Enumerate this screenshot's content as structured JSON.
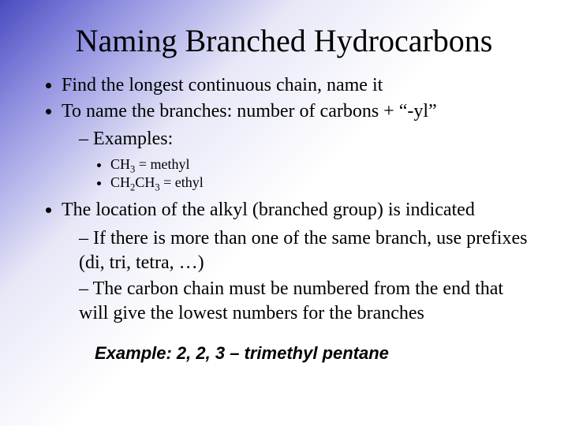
{
  "colors": {
    "gradient_start": "#4a4ac0",
    "gradient_mid": "#e8e8f8",
    "gradient_end": "#ffffff",
    "text": "#000000"
  },
  "typography": {
    "title_fontsize": 40,
    "body_fontsize": 24,
    "sub_fontsize": 18,
    "final_fontsize": 22,
    "body_family": "Times New Roman",
    "final_family": "Arial"
  },
  "title": "Naming Branched Hydrocarbons",
  "bullets": {
    "b1": "Find the longest continuous chain, name it",
    "b2": "To name the branches:  number of carbons + “-yl”",
    "b2_sub1": "Examples:",
    "b2_ex1_pre": "CH",
    "b2_ex1_sub": "3",
    "b2_ex1_post": " = methyl",
    "b2_ex2_a_pre": "CH",
    "b2_ex2_a_sub": "2",
    "b2_ex2_b_pre": "CH",
    "b2_ex2_b_sub": "3",
    "b2_ex2_post": " = ethyl",
    "b3": "The location of the alkyl (branched group) is indicated",
    "b3_sub1": "If there is more than one of the same branch, use prefixes (di, tri, tetra, …)",
    "b3_sub2": "The carbon chain must be numbered from the end that will give the lowest numbers for the branches"
  },
  "example_final": "Example:  2, 2, 3 – trimethyl pentane"
}
